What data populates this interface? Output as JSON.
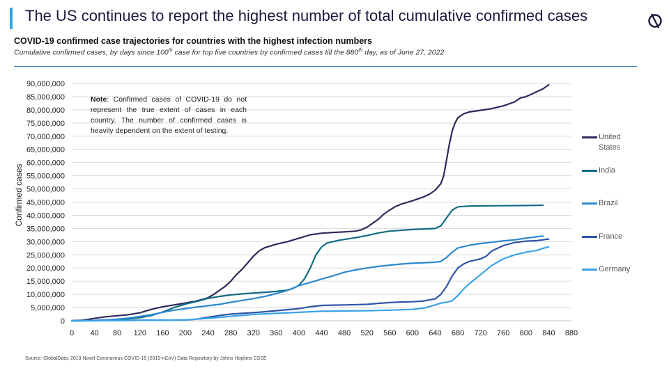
{
  "header": {
    "title": "The US continues to report the highest number of total cumulative confirmed cases",
    "accent_color": "#29a8e0",
    "logo_icon": "globaldata-logo-icon"
  },
  "chart_data": {
    "type": "line",
    "title": "COVID-19 confirmed case trajectories for countries with the highest infection numbers",
    "subtitle_parts": [
      "Cumulative confirmed cases, by days since 100",
      "th",
      " case for top five countries by confirmed cases till the 880",
      "th",
      " day, as of June 27, 2022"
    ],
    "xlabel": "",
    "ylabel": "Confirmed cases",
    "xlim": [
      0,
      880
    ],
    "ylim": [
      0,
      90000000
    ],
    "x_ticks": [
      "0",
      "40",
      "80",
      "120",
      "160",
      "200",
      "240",
      "280",
      "320",
      "360",
      "400",
      "440",
      "480",
      "520",
      "560",
      "600",
      "640",
      "680",
      "720",
      "760",
      "800",
      "840",
      "880"
    ],
    "y_ticks": [
      "0",
      "5,000,000",
      "10,000,000",
      "15,000,000",
      "20,000,000",
      "25,000,000",
      "30,000,000",
      "35,000,000",
      "40,000,000",
      "45,000,000",
      "50,000,000",
      "55,000,000",
      "60,000,000",
      "65,000,000",
      "70,000,000",
      "75,000,000",
      "80,000,000",
      "85,000,000",
      "90,000,000"
    ],
    "grid": true,
    "legend_position": "right",
    "note_label": "Note",
    "note_text": ": Confirmed cases of COVID-19 do not represent the true extent of cases in each country. The number of confirmed cases is heavily dependent on the extent of testing.",
    "series": [
      {
        "name": "United States",
        "color": "#2e2a5c",
        "points": [
          [
            0,
            0
          ],
          [
            20,
            200000
          ],
          [
            40,
            900000
          ],
          [
            60,
            1500000
          ],
          [
            80,
            1900000
          ],
          [
            100,
            2300000
          ],
          [
            120,
            3000000
          ],
          [
            140,
            4300000
          ],
          [
            160,
            5300000
          ],
          [
            180,
            6000000
          ],
          [
            200,
            6700000
          ],
          [
            220,
            7500000
          ],
          [
            240,
            8700000
          ],
          [
            250,
            10000000
          ],
          [
            260,
            11500000
          ],
          [
            270,
            13000000
          ],
          [
            280,
            15000000
          ],
          [
            290,
            17500000
          ],
          [
            300,
            19500000
          ],
          [
            310,
            22000000
          ],
          [
            320,
            24500000
          ],
          [
            330,
            26500000
          ],
          [
            340,
            27700000
          ],
          [
            360,
            29000000
          ],
          [
            380,
            30000000
          ],
          [
            400,
            31300000
          ],
          [
            420,
            32600000
          ],
          [
            440,
            33200000
          ],
          [
            460,
            33500000
          ],
          [
            480,
            33700000
          ],
          [
            500,
            34000000
          ],
          [
            510,
            34500000
          ],
          [
            520,
            35500000
          ],
          [
            530,
            37000000
          ],
          [
            540,
            38500000
          ],
          [
            550,
            40500000
          ],
          [
            560,
            42000000
          ],
          [
            570,
            43300000
          ],
          [
            580,
            44200000
          ],
          [
            600,
            45500000
          ],
          [
            620,
            47000000
          ],
          [
            630,
            48000000
          ],
          [
            640,
            49500000
          ],
          [
            650,
            52000000
          ],
          [
            655,
            55000000
          ],
          [
            660,
            61000000
          ],
          [
            665,
            67000000
          ],
          [
            670,
            72000000
          ],
          [
            675,
            75000000
          ],
          [
            680,
            77000000
          ],
          [
            690,
            78500000
          ],
          [
            700,
            79200000
          ],
          [
            720,
            79800000
          ],
          [
            740,
            80500000
          ],
          [
            760,
            81500000
          ],
          [
            780,
            83000000
          ],
          [
            790,
            84500000
          ],
          [
            800,
            85000000
          ],
          [
            810,
            86000000
          ],
          [
            820,
            87000000
          ],
          [
            830,
            88000000
          ],
          [
            840,
            89500000
          ]
        ]
      },
      {
        "name": "India",
        "color": "#136b86",
        "points": [
          [
            0,
            0
          ],
          [
            20,
            0
          ],
          [
            40,
            100000
          ],
          [
            60,
            200000
          ],
          [
            80,
            400000
          ],
          [
            100,
            700000
          ],
          [
            120,
            1200000
          ],
          [
            140,
            2000000
          ],
          [
            160,
            3300000
          ],
          [
            180,
            5000000
          ],
          [
            200,
            6300000
          ],
          [
            220,
            7300000
          ],
          [
            240,
            8500000
          ],
          [
            260,
            9200000
          ],
          [
            280,
            9800000
          ],
          [
            300,
            10200000
          ],
          [
            320,
            10500000
          ],
          [
            340,
            10800000
          ],
          [
            360,
            11100000
          ],
          [
            380,
            11600000
          ],
          [
            390,
            12300000
          ],
          [
            400,
            13400000
          ],
          [
            410,
            16000000
          ],
          [
            420,
            20000000
          ],
          [
            430,
            25000000
          ],
          [
            440,
            28000000
          ],
          [
            450,
            29500000
          ],
          [
            470,
            30500000
          ],
          [
            500,
            31500000
          ],
          [
            520,
            32300000
          ],
          [
            540,
            33300000
          ],
          [
            560,
            34000000
          ],
          [
            600,
            34600000
          ],
          [
            640,
            35000000
          ],
          [
            650,
            36000000
          ],
          [
            660,
            39000000
          ],
          [
            670,
            42000000
          ],
          [
            680,
            43200000
          ],
          [
            700,
            43500000
          ],
          [
            740,
            43600000
          ],
          [
            800,
            43700000
          ],
          [
            830,
            43800000
          ]
        ]
      },
      {
        "name": "Brazil",
        "color": "#2b88d0",
        "points": [
          [
            0,
            0
          ],
          [
            20,
            0
          ],
          [
            40,
            100000
          ],
          [
            60,
            300000
          ],
          [
            80,
            600000
          ],
          [
            100,
            1000000
          ],
          [
            120,
            1600000
          ],
          [
            140,
            2300000
          ],
          [
            160,
            3200000
          ],
          [
            180,
            4000000
          ],
          [
            200,
            4600000
          ],
          [
            220,
            5200000
          ],
          [
            240,
            5700000
          ],
          [
            260,
            6200000
          ],
          [
            280,
            7000000
          ],
          [
            300,
            7700000
          ],
          [
            320,
            8400000
          ],
          [
            340,
            9200000
          ],
          [
            360,
            10300000
          ],
          [
            380,
            11500000
          ],
          [
            400,
            13300000
          ],
          [
            420,
            14500000
          ],
          [
            440,
            15800000
          ],
          [
            460,
            17000000
          ],
          [
            480,
            18400000
          ],
          [
            500,
            19300000
          ],
          [
            520,
            20000000
          ],
          [
            540,
            20600000
          ],
          [
            560,
            21100000
          ],
          [
            580,
            21500000
          ],
          [
            600,
            21800000
          ],
          [
            620,
            22000000
          ],
          [
            640,
            22200000
          ],
          [
            650,
            22500000
          ],
          [
            660,
            24000000
          ],
          [
            670,
            26000000
          ],
          [
            680,
            27600000
          ],
          [
            700,
            28600000
          ],
          [
            720,
            29300000
          ],
          [
            740,
            29800000
          ],
          [
            760,
            30300000
          ],
          [
            780,
            30700000
          ],
          [
            800,
            31300000
          ],
          [
            820,
            31900000
          ],
          [
            830,
            32100000
          ]
        ]
      },
      {
        "name": "France",
        "color": "#2e55a6",
        "points": [
          [
            0,
            0
          ],
          [
            40,
            0
          ],
          [
            80,
            100000
          ],
          [
            120,
            150000
          ],
          [
            160,
            200000
          ],
          [
            200,
            300000
          ],
          [
            220,
            600000
          ],
          [
            240,
            1300000
          ],
          [
            260,
            2000000
          ],
          [
            280,
            2500000
          ],
          [
            300,
            2800000
          ],
          [
            320,
            3100000
          ],
          [
            340,
            3400000
          ],
          [
            360,
            3800000
          ],
          [
            380,
            4200000
          ],
          [
            400,
            4600000
          ],
          [
            420,
            5300000
          ],
          [
            440,
            5800000
          ],
          [
            460,
            5900000
          ],
          [
            480,
            6000000
          ],
          [
            520,
            6200000
          ],
          [
            540,
            6600000
          ],
          [
            560,
            6900000
          ],
          [
            580,
            7100000
          ],
          [
            600,
            7200000
          ],
          [
            620,
            7500000
          ],
          [
            640,
            8300000
          ],
          [
            650,
            10000000
          ],
          [
            660,
            13000000
          ],
          [
            670,
            17000000
          ],
          [
            680,
            20000000
          ],
          [
            690,
            21500000
          ],
          [
            700,
            22500000
          ],
          [
            720,
            23500000
          ],
          [
            730,
            24500000
          ],
          [
            740,
            26500000
          ],
          [
            760,
            28500000
          ],
          [
            780,
            29700000
          ],
          [
            800,
            30200000
          ],
          [
            820,
            30400000
          ],
          [
            840,
            31000000
          ]
        ]
      },
      {
        "name": "Germany",
        "color": "#3aa3e6",
        "points": [
          [
            0,
            0
          ],
          [
            40,
            0
          ],
          [
            80,
            100000
          ],
          [
            120,
            150000
          ],
          [
            160,
            200000
          ],
          [
            200,
            300000
          ],
          [
            220,
            600000
          ],
          [
            240,
            900000
          ],
          [
            260,
            1300000
          ],
          [
            280,
            1700000
          ],
          [
            300,
            2000000
          ],
          [
            320,
            2400000
          ],
          [
            340,
            2600000
          ],
          [
            360,
            2800000
          ],
          [
            380,
            3000000
          ],
          [
            400,
            3200000
          ],
          [
            420,
            3400000
          ],
          [
            440,
            3600000
          ],
          [
            480,
            3700000
          ],
          [
            520,
            3800000
          ],
          [
            560,
            4000000
          ],
          [
            600,
            4300000
          ],
          [
            620,
            4800000
          ],
          [
            640,
            6000000
          ],
          [
            650,
            6700000
          ],
          [
            660,
            7000000
          ],
          [
            670,
            7600000
          ],
          [
            680,
            9500000
          ],
          [
            690,
            12000000
          ],
          [
            700,
            14000000
          ],
          [
            720,
            17500000
          ],
          [
            740,
            21000000
          ],
          [
            760,
            23500000
          ],
          [
            780,
            25000000
          ],
          [
            800,
            26000000
          ],
          [
            820,
            26700000
          ],
          [
            830,
            27500000
          ],
          [
            840,
            28000000
          ]
        ]
      }
    ]
  },
  "footer": {
    "source": "Source: GlobalData; 2019 Novel Coronavirus COVID-19 (2019-nCoV) Data Repository by Johns Hopkins CSSE"
  }
}
